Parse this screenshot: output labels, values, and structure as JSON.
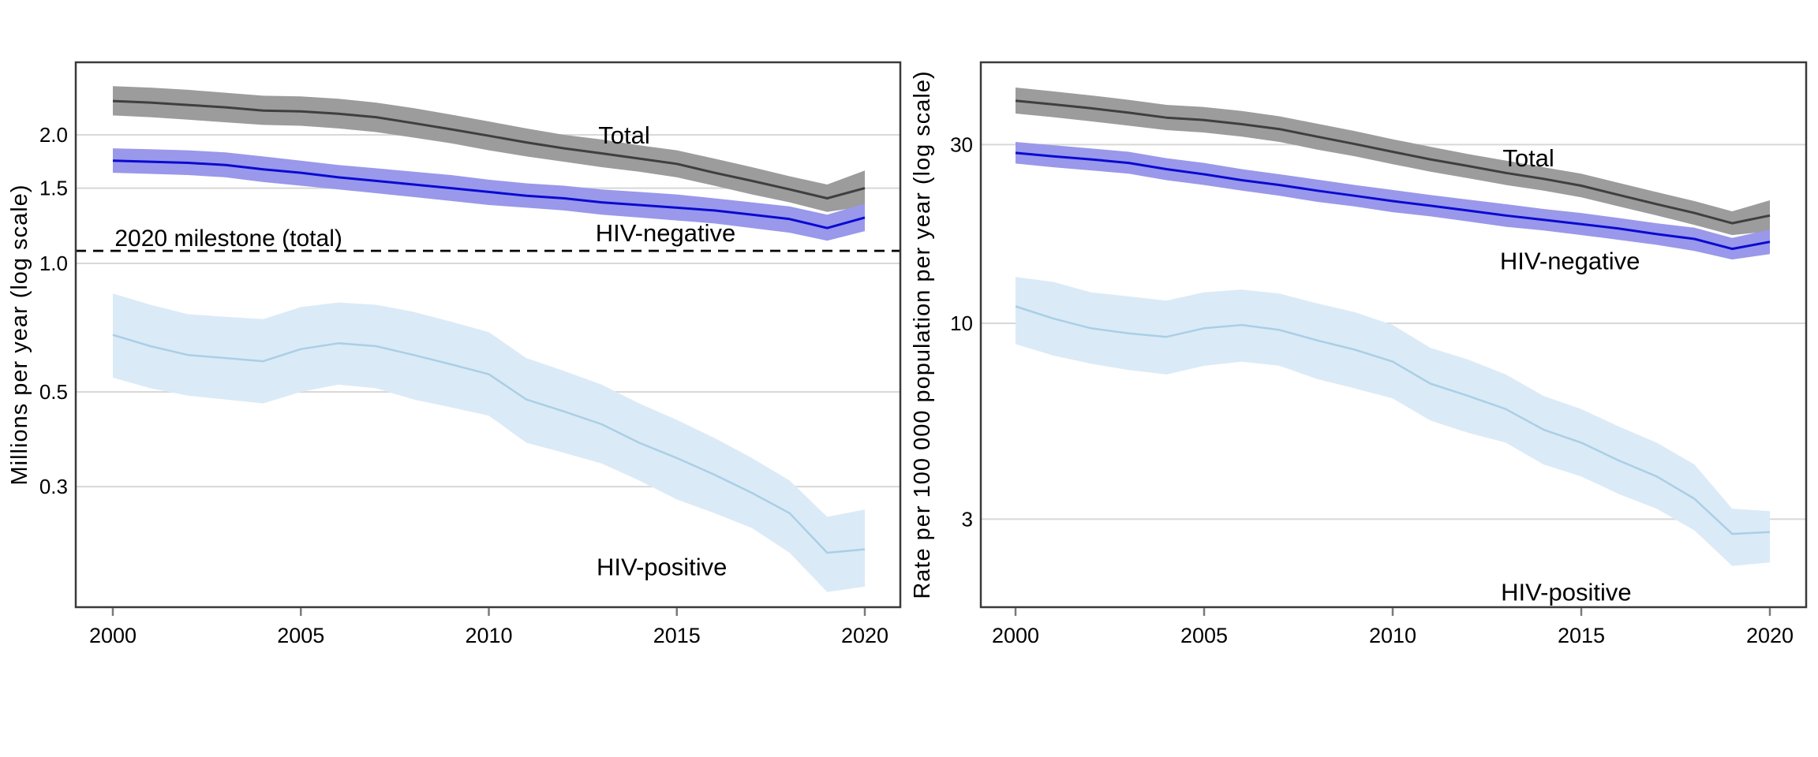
{
  "styles": {
    "background": "#ffffff",
    "grid_color": "#d8d8d8",
    "border_color": "#3a3a3a",
    "tick_color": "#7a7a7a",
    "text_color": "#000000",
    "dashed_line_color": "#000000"
  },
  "chart_data": [
    {
      "type": "line",
      "panel": "left",
      "title": "",
      "xlabel": "",
      "ylabel": "Millions per year (log scale)",
      "yscale": "log",
      "grid": "horizontal-only",
      "legend": "inline-labels",
      "x": [
        2000,
        2001,
        2002,
        2003,
        2004,
        2005,
        2006,
        2007,
        2008,
        2009,
        2010,
        2011,
        2012,
        2013,
        2014,
        2015,
        2016,
        2017,
        2018,
        2019,
        2020
      ],
      "xtick_values": [
        2000,
        2005,
        2010,
        2015,
        2020
      ],
      "xtick_labels": [
        "2000",
        "2005",
        "2010",
        "2015",
        "2020"
      ],
      "ytick_values": [
        2.0,
        1.5,
        1.0,
        0.5,
        0.3
      ],
      "ytick_labels": [
        "2.0",
        "1.5",
        "1.0",
        "0.5",
        "0.3"
      ],
      "ylim": [
        0.157,
        2.95
      ],
      "reference_line": {
        "label": "2020 milestone (total)",
        "value": 1.07,
        "style": "dashed"
      },
      "reference_label_pos": {
        "x": 2000.05,
        "y": 1.15
      },
      "series": [
        {
          "name": "Total",
          "line_color": "#3f3f3f",
          "band_color": "#9c9c9c",
          "label_pos": {
            "x": 2013.6,
            "y": 2.0
          },
          "values": [
            2.4,
            2.38,
            2.35,
            2.32,
            2.28,
            2.27,
            2.24,
            2.2,
            2.13,
            2.06,
            1.99,
            1.92,
            1.86,
            1.81,
            1.76,
            1.71,
            1.63,
            1.56,
            1.49,
            1.42,
            1.5
          ],
          "lower": [
            2.22,
            2.2,
            2.17,
            2.14,
            2.11,
            2.1,
            2.07,
            2.03,
            1.97,
            1.91,
            1.84,
            1.78,
            1.73,
            1.68,
            1.64,
            1.59,
            1.52,
            1.45,
            1.39,
            1.32,
            1.36
          ],
          "upper": [
            2.6,
            2.58,
            2.55,
            2.51,
            2.47,
            2.46,
            2.43,
            2.38,
            2.31,
            2.23,
            2.15,
            2.07,
            2.0,
            1.95,
            1.89,
            1.84,
            1.76,
            1.68,
            1.6,
            1.53,
            1.65
          ]
        },
        {
          "name": "HIV-negative",
          "line_color": "#0a0ad1",
          "band_color": "#9a98ea",
          "label_pos": {
            "x": 2014.7,
            "y": 1.18
          },
          "values": [
            1.74,
            1.73,
            1.72,
            1.7,
            1.66,
            1.63,
            1.59,
            1.56,
            1.53,
            1.5,
            1.47,
            1.44,
            1.42,
            1.39,
            1.37,
            1.35,
            1.33,
            1.3,
            1.27,
            1.21,
            1.28
          ],
          "lower": [
            1.63,
            1.62,
            1.61,
            1.59,
            1.55,
            1.52,
            1.49,
            1.46,
            1.43,
            1.4,
            1.37,
            1.35,
            1.33,
            1.3,
            1.28,
            1.26,
            1.24,
            1.21,
            1.18,
            1.13,
            1.19
          ],
          "upper": [
            1.86,
            1.85,
            1.84,
            1.82,
            1.78,
            1.74,
            1.7,
            1.67,
            1.64,
            1.61,
            1.57,
            1.54,
            1.52,
            1.49,
            1.47,
            1.45,
            1.42,
            1.39,
            1.36,
            1.3,
            1.38
          ]
        },
        {
          "name": "HIV-positive",
          "line_color": "#a9cfe6",
          "band_color": "#dbeaf7",
          "label_pos": {
            "x": 2014.6,
            "y": 0.195
          },
          "values": [
            0.68,
            0.64,
            0.61,
            0.6,
            0.59,
            0.63,
            0.65,
            0.64,
            0.61,
            0.58,
            0.55,
            0.48,
            0.45,
            0.42,
            0.38,
            0.35,
            0.32,
            0.29,
            0.26,
            0.21,
            0.214
          ],
          "lower": [
            0.54,
            0.51,
            0.49,
            0.48,
            0.47,
            0.5,
            0.52,
            0.51,
            0.48,
            0.46,
            0.44,
            0.38,
            0.36,
            0.34,
            0.31,
            0.28,
            0.26,
            0.24,
            0.21,
            0.17,
            0.175
          ],
          "upper": [
            0.85,
            0.8,
            0.76,
            0.75,
            0.74,
            0.79,
            0.81,
            0.8,
            0.77,
            0.73,
            0.69,
            0.6,
            0.56,
            0.52,
            0.47,
            0.43,
            0.39,
            0.35,
            0.31,
            0.255,
            0.265
          ]
        }
      ]
    },
    {
      "type": "line",
      "panel": "right",
      "title": "",
      "xlabel": "",
      "ylabel": "Rate per 100 000 population per year (log scale)",
      "yscale": "log",
      "grid": "horizontal-only",
      "legend": "inline-labels",
      "x": [
        2000,
        2001,
        2002,
        2003,
        2004,
        2005,
        2006,
        2007,
        2008,
        2009,
        2010,
        2011,
        2012,
        2013,
        2014,
        2015,
        2016,
        2017,
        2018,
        2019,
        2020
      ],
      "xtick_values": [
        2000,
        2005,
        2010,
        2015,
        2020
      ],
      "xtick_labels": [
        "2000",
        "2005",
        "2010",
        "2015",
        "2020"
      ],
      "ytick_values": [
        30,
        10,
        3
      ],
      "ytick_labels": [
        "30",
        "10",
        "3"
      ],
      "ylim": [
        1.68,
        49.5
      ],
      "reference_line": null,
      "series": [
        {
          "name": "Total",
          "line_color": "#3f3f3f",
          "band_color": "#9c9c9c",
          "label_pos": {
            "x": 2013.6,
            "y": 27.7
          },
          "values": [
            39.3,
            38.4,
            37.5,
            36.5,
            35.4,
            34.9,
            34.0,
            33.0,
            31.5,
            30.1,
            28.7,
            27.4,
            26.3,
            25.2,
            24.3,
            23.3,
            22.0,
            20.8,
            19.7,
            18.5,
            19.4
          ],
          "lower": [
            36.3,
            35.5,
            34.6,
            33.7,
            32.8,
            32.3,
            31.5,
            30.5,
            29.1,
            27.9,
            26.6,
            25.4,
            24.4,
            23.4,
            22.6,
            21.7,
            20.5,
            19.4,
            18.3,
            17.2,
            17.6
          ],
          "upper": [
            42.6,
            41.6,
            40.6,
            39.5,
            38.3,
            37.8,
            36.9,
            35.7,
            34.1,
            32.6,
            31.0,
            29.6,
            28.3,
            27.2,
            26.1,
            25.1,
            23.7,
            22.4,
            21.2,
            19.9,
            21.3
          ]
        },
        {
          "name": "HIV-negative",
          "line_color": "#0a0ad1",
          "band_color": "#9a98ea",
          "label_pos": {
            "x": 2014.7,
            "y": 14.7
          },
          "values": [
            28.5,
            27.9,
            27.4,
            26.8,
            25.8,
            25.0,
            24.1,
            23.4,
            22.6,
            21.9,
            21.2,
            20.6,
            20.0,
            19.4,
            18.9,
            18.4,
            17.9,
            17.3,
            16.8,
            15.8,
            16.5
          ],
          "lower": [
            26.7,
            26.1,
            25.6,
            25.1,
            24.1,
            23.4,
            22.6,
            21.9,
            21.1,
            20.5,
            19.8,
            19.3,
            18.7,
            18.1,
            17.7,
            17.2,
            16.7,
            16.2,
            15.6,
            14.8,
            15.3
          ],
          "upper": [
            30.5,
            29.9,
            29.3,
            28.7,
            27.6,
            26.8,
            25.8,
            25.0,
            24.2,
            23.4,
            22.7,
            22.0,
            21.4,
            20.8,
            20.2,
            19.7,
            19.1,
            18.5,
            18.0,
            16.9,
            17.8
          ]
        },
        {
          "name": "HIV-positive",
          "line_color": "#a9cfe6",
          "band_color": "#dbeaf7",
          "label_pos": {
            "x": 2014.6,
            "y": 1.92
          },
          "values": [
            11.1,
            10.3,
            9.7,
            9.4,
            9.2,
            9.7,
            9.9,
            9.6,
            9.0,
            8.5,
            7.9,
            6.9,
            6.4,
            5.9,
            5.2,
            4.8,
            4.3,
            3.9,
            3.4,
            2.74,
            2.77
          ],
          "lower": [
            8.8,
            8.2,
            7.8,
            7.5,
            7.3,
            7.7,
            7.9,
            7.7,
            7.1,
            6.7,
            6.3,
            5.5,
            5.1,
            4.8,
            4.2,
            3.9,
            3.5,
            3.2,
            2.8,
            2.25,
            2.3
          ],
          "upper": [
            13.3,
            12.9,
            12.1,
            11.8,
            11.5,
            12.1,
            12.3,
            12.0,
            11.3,
            10.7,
            9.9,
            8.6,
            8.0,
            7.3,
            6.4,
            5.9,
            5.3,
            4.8,
            4.2,
            3.2,
            3.15
          ]
        }
      ]
    }
  ]
}
